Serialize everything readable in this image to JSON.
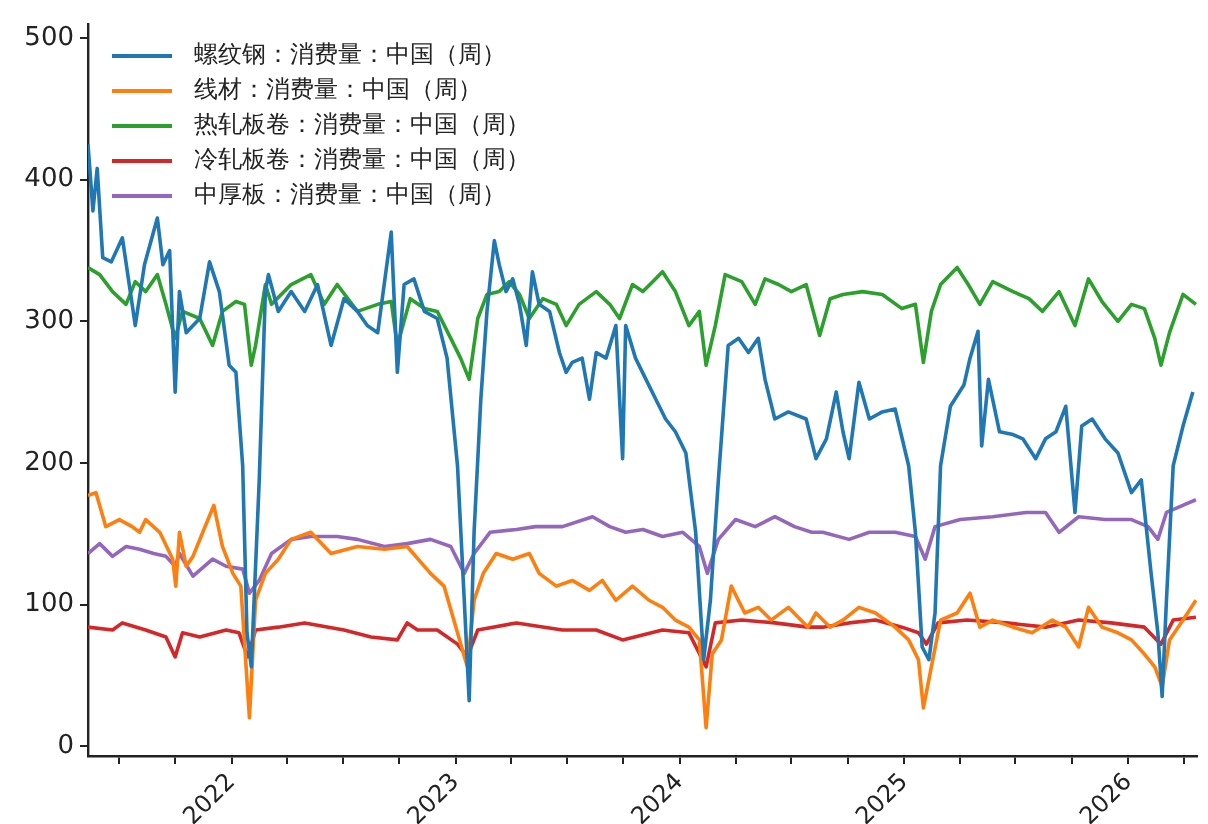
{
  "chart_data": {
    "type": "line",
    "xlim": [
      "2021-05-12",
      "2026-04-23"
    ],
    "ylim": [
      -7,
      510
    ],
    "yticks": [
      0,
      100,
      200,
      300,
      400,
      500
    ],
    "xticks": [
      {
        "value": "2021-07",
        "label": null
      },
      {
        "value": "2021-10",
        "label": null
      },
      "2022",
      {
        "value": "2022-04",
        "label": null
      },
      {
        "value": "2022-07",
        "label": null
      },
      {
        "value": "2022-10",
        "label": null
      },
      "2023",
      {
        "value": "2023-04",
        "label": null
      },
      {
        "value": "2023-07",
        "label": null
      },
      {
        "value": "2023-10",
        "label": null
      },
      "2024",
      {
        "value": "2024-04",
        "label": null
      },
      {
        "value": "2024-07",
        "label": null
      },
      {
        "value": "2024-10",
        "label": null
      },
      "2025",
      {
        "value": "2025-04",
        "label": null
      },
      {
        "value": "2025-07",
        "label": null
      },
      {
        "value": "2025-10",
        "label": null
      },
      "2026",
      {
        "value": "2026-04",
        "label": null
      }
    ],
    "grid": false,
    "legend": "top left",
    "line_style": "solid",
    "series": [
      {
        "name": "螺纹钢：消费量：中国（周）",
        "color": "#1f77b4",
        "x": [
          "2021-05-12",
          "2021-05-20",
          "2021-05-27",
          "2021-06-05",
          "2021-06-19",
          "2021-07-07",
          "2021-07-28",
          "2021-08-12",
          "2021-09-02",
          "2021-09-11",
          "2021-09-22",
          "2021-10-01",
          "2021-10-08",
          "2021-10-19",
          "2021-11-10",
          "2021-11-26",
          "2021-12-12",
          "2021-12-28",
          "2022-01-08",
          "2022-01-19",
          "2022-01-26",
          "2022-02-02",
          "2022-02-15",
          "2022-02-25",
          "2022-03-02",
          "2022-03-18",
          "2022-04-08",
          "2022-04-30",
          "2022-05-21",
          "2022-06-12",
          "2022-07-03",
          "2022-07-25",
          "2022-08-10",
          "2022-08-27",
          "2022-09-18",
          "2022-09-28",
          "2022-10-09",
          "2022-10-25",
          "2022-11-11",
          "2022-12-02",
          "2022-12-18",
          "2023-01-04",
          "2023-01-15",
          "2023-01-23",
          "2023-01-31",
          "2023-02-11",
          "2023-02-21",
          "2023-03-05",
          "2023-03-13",
          "2023-03-24",
          "2023-04-04",
          "2023-04-15",
          "2023-04-26",
          "2023-05-06",
          "2023-05-17",
          "2023-06-03",
          "2023-06-19",
          "2023-06-30",
          "2023-07-10",
          "2023-07-26",
          "2023-08-07",
          "2023-08-18",
          "2023-09-03",
          "2023-09-19",
          "2023-09-30",
          "2023-10-05",
          "2023-10-21",
          "2023-11-07",
          "2023-11-23",
          "2023-12-09",
          "2023-12-25",
          "2024-01-11",
          "2024-01-27",
          "2024-02-09",
          "2024-02-20",
          "2024-03-04",
          "2024-03-20",
          "2024-04-06",
          "2024-04-22",
          "2024-05-08",
          "2024-05-19",
          "2024-06-04",
          "2024-06-26",
          "2024-07-25",
          "2024-08-10",
          "2024-08-27",
          "2024-09-12",
          "2024-09-23",
          "2024-10-03",
          "2024-10-19",
          "2024-11-05",
          "2024-11-26",
          "2024-12-17",
          "2025-01-08",
          "2025-01-19",
          "2025-01-30",
          "2025-02-10",
          "2025-02-20",
          "2025-03-01",
          "2025-03-17",
          "2025-04-08",
          "2025-04-18",
          "2025-05-01",
          "2025-05-07",
          "2025-05-18",
          "2025-06-05",
          "2025-06-27",
          "2025-07-13",
          "2025-08-03",
          "2025-08-19",
          "2025-09-05",
          "2025-09-21",
          "2025-10-06",
          "2025-10-17",
          "2025-11-03",
          "2025-11-24",
          "2025-12-15",
          "2026-01-06",
          "2026-01-22",
          "2026-02-07",
          "2026-02-18",
          "2026-02-25",
          "2026-03-04",
          "2026-03-15",
          "2026-03-31",
          "2026-04-16"
        ],
        "values": [
          425,
          378,
          408,
          345,
          342,
          359,
          297,
          340,
          373,
          340,
          350,
          250,
          321,
          292,
          302,
          342,
          321,
          269,
          264,
          198,
          80,
          56,
          188,
          321,
          333,
          307,
          321,
          307,
          326,
          283,
          316,
          307,
          297,
          292,
          363,
          264,
          326,
          330,
          307,
          302,
          274,
          198,
          103,
          32,
          151,
          245,
          307,
          357,
          340,
          321,
          330,
          312,
          283,
          335,
          312,
          307,
          278,
          264,
          271,
          274,
          245,
          278,
          274,
          297,
          203,
          297,
          274,
          259,
          245,
          231,
          222,
          207,
          151,
          61,
          103,
          188,
          283,
          288,
          278,
          288,
          259,
          231,
          236,
          231,
          203,
          217,
          250,
          222,
          203,
          257,
          231,
          236,
          238,
          198,
          151,
          70,
          61,
          94,
          198,
          240,
          255,
          274,
          293,
          212,
          259,
          222,
          220,
          217,
          203,
          217,
          222,
          240,
          165,
          226,
          231,
          217,
          207,
          179,
          188,
          122,
          80,
          35,
          103,
          198,
          226,
          250
        ]
      },
      {
        "name": "线材：消费量：中国（周）",
        "color": "#ff7f0e",
        "x": [
          "2021-05-12",
          "2021-05-25",
          "2021-06-10",
          "2021-07-02",
          "2021-07-23",
          "2021-08-04",
          "2021-08-14",
          "2021-09-06",
          "2021-09-27",
          "2021-10-02",
          "2021-10-08",
          "2021-10-19",
          "2021-10-30",
          "2021-11-15",
          "2021-12-03",
          "2021-12-17",
          "2022-01-03",
          "2022-01-16",
          "2022-01-30",
          "2022-02-09",
          "2022-02-25",
          "2022-03-18",
          "2022-04-08",
          "2022-05-10",
          "2022-06-12",
          "2022-07-25",
          "2022-09-07",
          "2022-10-14",
          "2022-11-21",
          "2022-12-13",
          "2023-01-04",
          "2023-01-20",
          "2023-01-31",
          "2023-02-15",
          "2023-03-08",
          "2023-04-04",
          "2023-05-01",
          "2023-05-17",
          "2023-06-14",
          "2023-07-10",
          "2023-08-07",
          "2023-08-28",
          "2023-09-19",
          "2023-10-16",
          "2023-11-12",
          "2023-12-04",
          "2023-12-25",
          "2024-01-16",
          "2024-02-02",
          "2024-02-13",
          "2024-02-23",
          "2024-03-09",
          "2024-03-25",
          "2024-04-16",
          "2024-05-08",
          "2024-05-29",
          "2024-06-26",
          "2024-07-28",
          "2024-08-10",
          "2024-09-02",
          "2024-09-23",
          "2024-10-19",
          "2024-11-15",
          "2024-12-17",
          "2025-01-08",
          "2025-01-24",
          "2025-02-01",
          "2025-02-14",
          "2025-03-01",
          "2025-03-28",
          "2025-04-18",
          "2025-05-04",
          "2025-05-25",
          "2025-06-27",
          "2025-07-28",
          "2025-08-30",
          "2025-09-21",
          "2025-10-12",
          "2025-10-28",
          "2025-11-19",
          "2025-12-15",
          "2026-01-06",
          "2026-01-27",
          "2026-02-13",
          "2026-02-25",
          "2026-03-09",
          "2026-03-31",
          "2026-04-21"
        ],
        "values": [
          177,
          179,
          155,
          160,
          155,
          151,
          160,
          151,
          132,
          113,
          151,
          127,
          134,
          151,
          170,
          141,
          122,
          113,
          20,
          103,
          122,
          132,
          146,
          151,
          136,
          141,
          139,
          141,
          122,
          113,
          80,
          56,
          103,
          122,
          136,
          132,
          136,
          122,
          113,
          117,
          110,
          117,
          103,
          113,
          103,
          98,
          89,
          84,
          75,
          13,
          65,
          75,
          113,
          94,
          98,
          89,
          98,
          84,
          94,
          84,
          89,
          98,
          94,
          84,
          75,
          61,
          27,
          56,
          89,
          94,
          108,
          84,
          89,
          84,
          80,
          89,
          84,
          70,
          98,
          84,
          80,
          75,
          65,
          56,
          42,
          75,
          89,
          103
        ]
      },
      {
        "name": "热轧板卷：消费量：中国（周）",
        "color": "#2ca02c",
        "x": [
          "2021-05-12",
          "2021-05-31",
          "2021-06-21",
          "2021-07-13",
          "2021-07-28",
          "2021-08-14",
          "2021-09-02",
          "2021-09-16",
          "2021-10-01",
          "2021-10-13",
          "2021-11-10",
          "2021-12-01",
          "2021-12-17",
          "2022-01-08",
          "2022-01-22",
          "2022-02-02",
          "2022-02-09",
          "2022-02-25",
          "2022-03-07",
          "2022-04-08",
          "2022-05-10",
          "2022-06-01",
          "2022-06-22",
          "2022-07-25",
          "2022-08-27",
          "2022-09-18",
          "2022-09-28",
          "2022-10-19",
          "2022-11-11",
          "2022-12-02",
          "2022-12-24",
          "2023-01-09",
          "2023-01-23",
          "2023-02-06",
          "2023-02-21",
          "2023-03-13",
          "2023-03-29",
          "2023-04-15",
          "2023-05-01",
          "2023-05-23",
          "2023-06-14",
          "2023-06-30",
          "2023-07-21",
          "2023-08-18",
          "2023-09-09",
          "2023-09-25",
          "2023-10-16",
          "2023-11-02",
          "2023-11-18",
          "2023-12-04",
          "2023-12-25",
          "2024-01-16",
          "2024-02-02",
          "2024-02-13",
          "2024-02-28",
          "2024-03-15",
          "2024-04-11",
          "2024-05-03",
          "2024-05-19",
          "2024-06-10",
          "2024-07-01",
          "2024-07-25",
          "2024-08-16",
          "2024-09-02",
          "2024-09-23",
          "2024-10-25",
          "2024-11-26",
          "2024-12-28",
          "2025-01-19",
          "2025-02-01",
          "2025-02-14",
          "2025-03-01",
          "2025-03-28",
          "2025-04-15",
          "2025-05-04",
          "2025-05-25",
          "2025-06-27",
          "2025-07-23",
          "2025-08-14",
          "2025-09-10",
          "2025-10-06",
          "2025-10-28",
          "2025-11-19",
          "2025-12-15",
          "2026-01-06",
          "2026-01-27",
          "2026-02-13",
          "2026-02-23",
          "2026-03-09",
          "2026-03-31",
          "2026-04-21"
        ],
        "values": [
          338,
          333,
          321,
          312,
          328,
          321,
          333,
          312,
          288,
          307,
          302,
          283,
          307,
          314,
          312,
          269,
          283,
          326,
          312,
          326,
          333,
          312,
          326,
          307,
          312,
          314,
          283,
          316,
          309,
          307,
          288,
          274,
          259,
          302,
          319,
          321,
          328,
          319,
          302,
          316,
          312,
          297,
          312,
          321,
          312,
          302,
          326,
          321,
          328,
          335,
          321,
          297,
          307,
          269,
          297,
          333,
          328,
          312,
          330,
          326,
          321,
          326,
          290,
          316,
          319,
          321,
          319,
          309,
          312,
          271,
          307,
          326,
          338,
          326,
          312,
          328,
          321,
          316,
          307,
          321,
          297,
          330,
          314,
          300,
          312,
          309,
          288,
          269,
          292,
          319,
          312
        ]
      },
      {
        "name": "冷轧板卷：消费量：中国（周）",
        "color": "#d62728",
        "x": [
          "2021-05-12",
          "2021-06-21",
          "2021-07-07",
          "2021-08-14",
          "2021-09-16",
          "2021-10-01",
          "2021-10-13",
          "2021-11-10",
          "2021-12-23",
          "2022-01-13",
          "2022-01-27",
          "2022-02-09",
          "2022-03-18",
          "2022-04-30",
          "2022-07-03",
          "2022-08-16",
          "2022-09-28",
          "2022-10-14",
          "2022-10-31",
          "2022-12-02",
          "2023-01-04",
          "2023-01-20",
          "2023-02-06",
          "2023-04-10",
          "2023-06-24",
          "2023-08-18",
          "2023-09-30",
          "2023-12-04",
          "2024-01-16",
          "2024-02-13",
          "2024-02-28",
          "2024-04-11",
          "2024-06-04",
          "2024-07-28",
          "2024-08-21",
          "2024-10-03",
          "2024-11-15",
          "2024-12-28",
          "2025-01-24",
          "2025-02-06",
          "2025-02-25",
          "2025-04-13",
          "2025-06-16",
          "2025-08-19",
          "2025-10-12",
          "2025-12-04",
          "2026-01-27",
          "2026-02-23",
          "2026-03-15",
          "2026-04-21"
        ],
        "values": [
          84,
          82,
          87,
          82,
          77,
          63,
          80,
          77,
          82,
          80,
          63,
          82,
          84,
          87,
          82,
          77,
          75,
          87,
          82,
          82,
          72,
          63,
          82,
          87,
          82,
          82,
          75,
          82,
          80,
          56,
          87,
          89,
          87,
          84,
          84,
          87,
          89,
          84,
          80,
          72,
          87,
          89,
          87,
          84,
          89,
          87,
          84,
          72,
          89,
          91
        ]
      },
      {
        "name": "中厚板：消费量：中国（周）",
        "color": "#9467bd",
        "x": [
          "2021-05-12",
          "2021-05-31",
          "2021-06-21",
          "2021-07-13",
          "2021-08-04",
          "2021-08-27",
          "2021-09-16",
          "2021-10-01",
          "2021-10-08",
          "2021-10-30",
          "2021-12-01",
          "2021-12-23",
          "2022-01-19",
          "2022-01-30",
          "2022-02-15",
          "2022-03-07",
          "2022-04-08",
          "2022-05-10",
          "2022-06-22",
          "2022-07-25",
          "2022-09-07",
          "2022-10-14",
          "2022-11-21",
          "2022-12-24",
          "2023-01-15",
          "2023-01-31",
          "2023-02-26",
          "2023-04-10",
          "2023-05-11",
          "2023-06-24",
          "2023-08-12",
          "2023-09-09",
          "2023-10-05",
          "2023-11-02",
          "2023-12-04",
          "2024-01-06",
          "2024-02-02",
          "2024-02-15",
          "2024-03-04",
          "2024-04-01",
          "2024-05-03",
          "2024-06-04",
          "2024-07-06",
          "2024-08-03",
          "2024-08-21",
          "2024-10-03",
          "2024-11-05",
          "2024-12-17",
          "2025-01-19",
          "2025-02-04",
          "2025-02-20",
          "2025-04-02",
          "2025-05-25",
          "2025-07-18",
          "2025-08-19",
          "2025-09-10",
          "2025-10-12",
          "2025-11-24",
          "2026-01-06",
          "2026-02-02",
          "2026-02-18",
          "2026-03-04",
          "2026-04-10",
          "2026-04-21"
        ],
        "values": [
          136,
          143,
          134,
          141,
          139,
          136,
          134,
          127,
          136,
          120,
          132,
          127,
          125,
          108,
          117,
          136,
          146,
          148,
          148,
          146,
          141,
          143,
          146,
          141,
          122,
          136,
          151,
          153,
          155,
          155,
          162,
          155,
          151,
          153,
          148,
          151,
          141,
          122,
          146,
          160,
          155,
          162,
          155,
          151,
          151,
          146,
          151,
          151,
          148,
          132,
          155,
          160,
          162,
          165,
          165,
          151,
          162,
          160,
          160,
          155,
          146,
          165,
          172,
          174
        ]
      }
    ]
  }
}
